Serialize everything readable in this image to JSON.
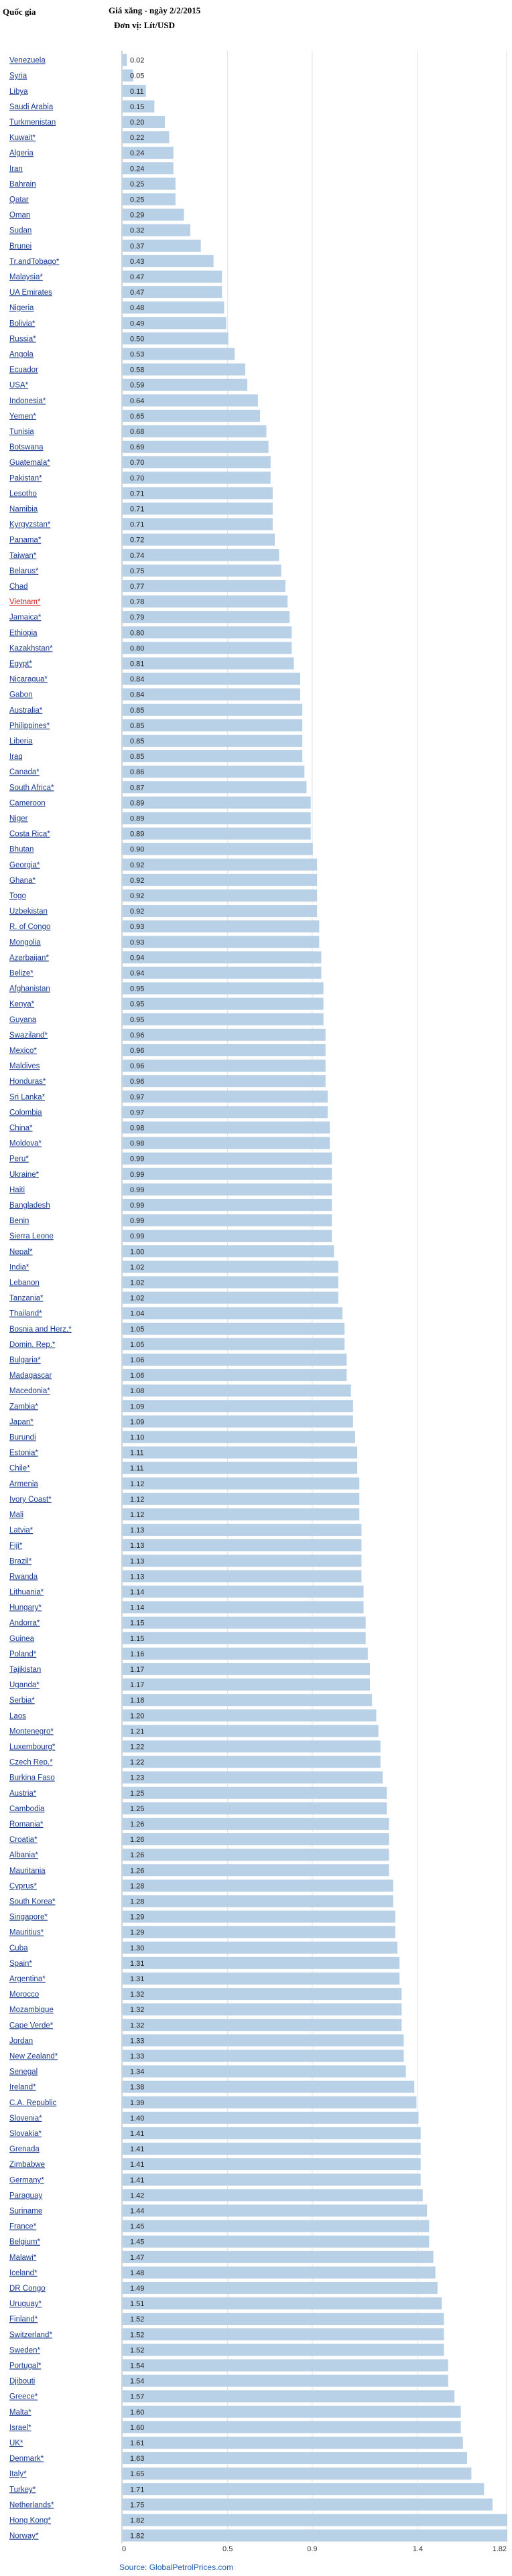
{
  "header": {
    "column_label": "Quốc gia",
    "title_line1": "Giá xăng - ngày 2/2/2015",
    "title_line2": "Đơn vị: Lít/USD"
  },
  "source": "Source: GlobalPetrolPrices.com",
  "colors": {
    "bar": "#b9d1e6",
    "label": "#1a3a8a",
    "highlight": "#cc2222"
  },
  "chart_data": {
    "type": "bar",
    "orientation": "horizontal",
    "title": "Giá xăng - ngày 2/2/2015",
    "subtitle": "Đơn vị: Lít/USD",
    "xlim": [
      0,
      1.82
    ],
    "x_ticks": [
      {
        "value": 0,
        "label": "0"
      },
      {
        "value": 0.5,
        "label": "0.5"
      },
      {
        "value": 0.9,
        "label": "0.9"
      },
      {
        "value": 1.4,
        "label": "1.4"
      },
      {
        "value": 1.82,
        "label": "1.82"
      }
    ],
    "grid": true,
    "highlighted": [
      "Vietnam*"
    ],
    "categories": [
      "Venezuela",
      "Syria",
      "Libya",
      "Saudi Arabia",
      "Turkmenistan",
      "Kuwait*",
      "Algeria",
      "Iran",
      "Bahrain",
      "Qatar",
      "Oman",
      "Sudan",
      "Brunei",
      "Tr.andTobago*",
      "Malaysia*",
      "UA Emirates",
      "Nigeria",
      "Bolivia*",
      "Russia*",
      "Angola",
      "Ecuador",
      "USA*",
      "Indonesia*",
      "Yemen*",
      "Tunisia",
      "Botswana",
      "Guatemala*",
      "Pakistan*",
      "Lesotho",
      "Namibia",
      "Kyrgyzstan*",
      "Panama*",
      "Taiwan*",
      "Belarus*",
      "Chad",
      "Vietnam*",
      "Jamaica*",
      "Ethiopia",
      "Kazakhstan*",
      "Egypt*",
      "Nicaragua*",
      "Gabon",
      "Australia*",
      "Philippines*",
      "Liberia",
      "Iraq",
      "Canada*",
      "South Africa*",
      "Cameroon",
      "Niger",
      "Costa Rica*",
      "Bhutan",
      "Georgia*",
      "Ghana*",
      "Togo",
      "Uzbekistan",
      "R. of Congo",
      "Mongolia",
      "Azerbaijan*",
      "Belize*",
      "Afghanistan",
      "Kenya*",
      "Guyana",
      "Swaziland*",
      "Mexico*",
      "Maldives",
      "Honduras*",
      "Sri Lanka*",
      "Colombia",
      "China*",
      "Moldova*",
      "Peru*",
      "Ukraine*",
      "Haiti",
      "Bangladesh",
      "Benin",
      "Sierra Leone",
      "Nepal*",
      "India*",
      "Lebanon",
      "Tanzania*",
      "Thailand*",
      "Bosnia and Herz.*",
      "Domin. Rep.*",
      "Bulgaria*",
      "Madagascar",
      "Macedonia*",
      "Zambia*",
      "Japan*",
      "Burundi",
      "Estonia*",
      "Chile*",
      "Armenia",
      "Ivory Coast*",
      "Mali",
      "Latvia*",
      "Fiji*",
      "Brazil*",
      "Rwanda",
      "Lithuania*",
      "Hungary*",
      "Andorra*",
      "Guinea",
      "Poland*",
      "Tajikistan",
      "Uganda*",
      "Serbia*",
      "Laos",
      "Montenegro*",
      "Luxembourg*",
      "Czech Rep.*",
      "Burkina Faso",
      "Austria*",
      "Cambodia",
      "Romania*",
      "Croatia*",
      "Albania*",
      "Mauritania",
      "Cyprus*",
      "South Korea*",
      "Singapore*",
      "Mauritius*",
      "Cuba",
      "Spain*",
      "Argentina*",
      "Morocco",
      "Mozambique",
      "Cape Verde*",
      "Jordan",
      "New Zealand*",
      "Senegal",
      "Ireland*",
      "C.A. Republic",
      "Slovenia*",
      "Slovakia*",
      "Grenada",
      "Zimbabwe",
      "Germany*",
      "Paraguay",
      "Suriname",
      "France*",
      "Belgium*",
      "Malawi*",
      "Iceland*",
      "DR Congo",
      "Uruguay*",
      "Finland*",
      "Switzerland*",
      "Sweden*",
      "Portugal*",
      "Djibouti",
      "Greece*",
      "Malta*",
      "Israel*",
      "UK*",
      "Denmark*",
      "Italy*",
      "Turkey*",
      "Netherlands*",
      "Hong Kong*",
      "Norway*"
    ],
    "values": [
      0.02,
      0.05,
      0.11,
      0.15,
      0.2,
      0.22,
      0.24,
      0.24,
      0.25,
      0.25,
      0.29,
      0.32,
      0.37,
      0.43,
      0.47,
      0.47,
      0.48,
      0.49,
      0.5,
      0.53,
      0.58,
      0.59,
      0.64,
      0.65,
      0.68,
      0.69,
      0.7,
      0.7,
      0.71,
      0.71,
      0.71,
      0.72,
      0.74,
      0.75,
      0.77,
      0.78,
      0.79,
      0.8,
      0.8,
      0.81,
      0.84,
      0.84,
      0.85,
      0.85,
      0.85,
      0.85,
      0.86,
      0.87,
      0.89,
      0.89,
      0.89,
      0.9,
      0.92,
      0.92,
      0.92,
      0.92,
      0.93,
      0.93,
      0.94,
      0.94,
      0.95,
      0.95,
      0.95,
      0.96,
      0.96,
      0.96,
      0.96,
      0.97,
      0.97,
      0.98,
      0.98,
      0.99,
      0.99,
      0.99,
      0.99,
      0.99,
      0.99,
      1.0,
      1.02,
      1.02,
      1.02,
      1.04,
      1.05,
      1.05,
      1.06,
      1.06,
      1.08,
      1.09,
      1.09,
      1.1,
      1.11,
      1.11,
      1.12,
      1.12,
      1.12,
      1.13,
      1.13,
      1.13,
      1.13,
      1.14,
      1.14,
      1.15,
      1.15,
      1.16,
      1.17,
      1.17,
      1.18,
      1.2,
      1.21,
      1.22,
      1.22,
      1.23,
      1.25,
      1.25,
      1.26,
      1.26,
      1.26,
      1.26,
      1.28,
      1.28,
      1.29,
      1.29,
      1.3,
      1.31,
      1.31,
      1.32,
      1.32,
      1.32,
      1.33,
      1.33,
      1.34,
      1.38,
      1.39,
      1.4,
      1.41,
      1.41,
      1.41,
      1.41,
      1.42,
      1.44,
      1.45,
      1.45,
      1.47,
      1.48,
      1.49,
      1.51,
      1.52,
      1.52,
      1.52,
      1.54,
      1.54,
      1.57,
      1.6,
      1.6,
      1.61,
      1.63,
      1.65,
      1.71,
      1.75,
      1.82,
      1.82
    ]
  }
}
